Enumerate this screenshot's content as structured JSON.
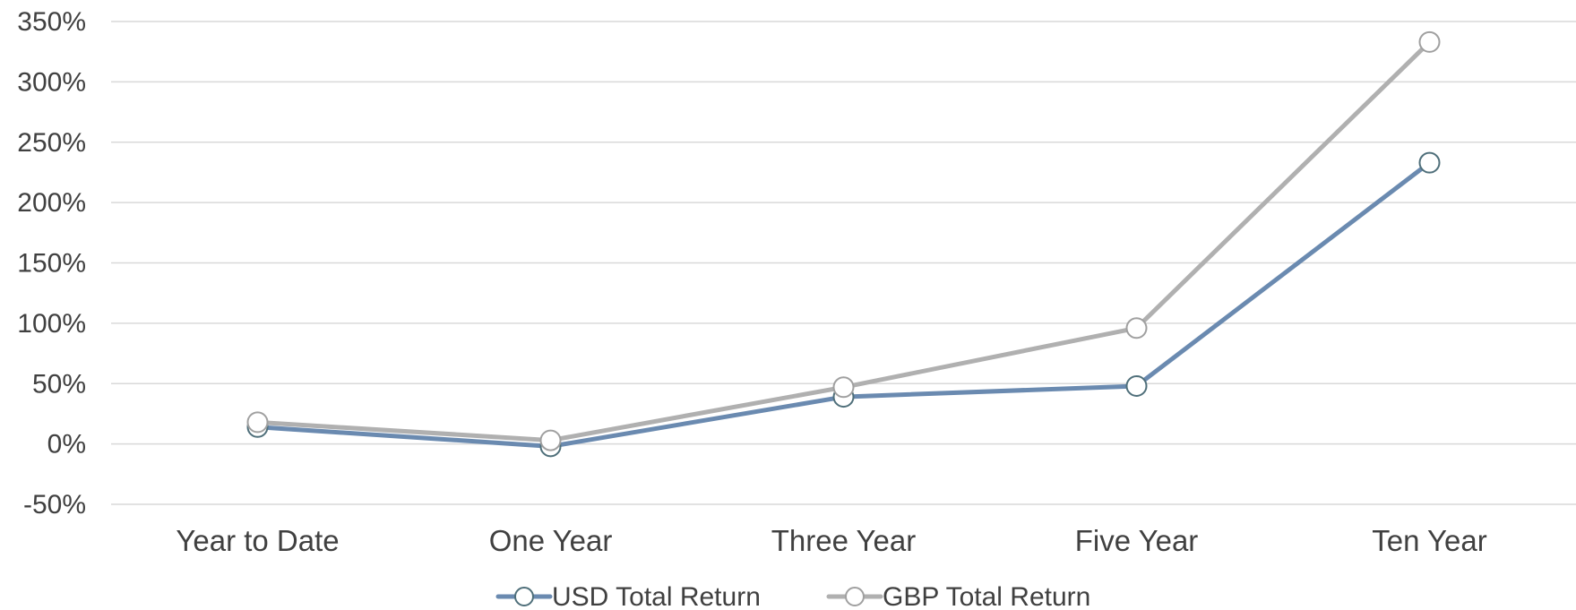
{
  "chart_data": {
    "type": "line",
    "title": "",
    "xlabel": "",
    "ylabel": "",
    "categories": [
      "Year to Date",
      "One Year",
      "Three Year",
      "Five Year",
      "Ten Year"
    ],
    "ylim": [
      -50,
      350
    ],
    "yticks": [
      350,
      300,
      250,
      200,
      150,
      100,
      50,
      0,
      -50
    ],
    "y_unit": "%",
    "grid": true,
    "legend_position": "bottom",
    "series": [
      {
        "name": "USD Total Return",
        "values": [
          14,
          -2,
          39,
          48,
          233
        ],
        "color": "#6a8ab0",
        "marker": "circle-open"
      },
      {
        "name": "GBP Total Return",
        "values": [
          18,
          3,
          47,
          96,
          333
        ],
        "color": "#b0b0b0",
        "marker": "circle-open"
      }
    ]
  }
}
